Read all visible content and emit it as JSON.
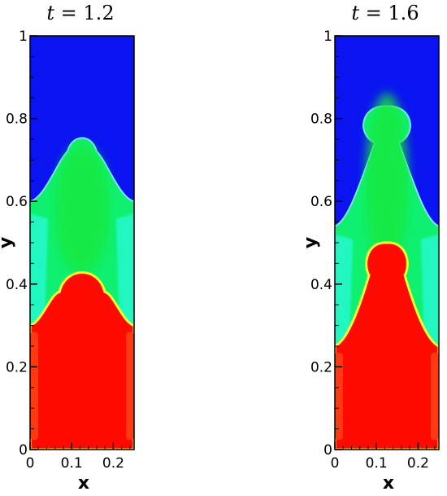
{
  "chart_data": [
    {
      "type": "heatmap",
      "title_parts": [
        "t",
        " = 1.2"
      ],
      "xlabel": "x",
      "ylabel": "y",
      "xlim": [
        0,
        0.25
      ],
      "ylim": [
        0,
        1
      ],
      "x_ticks": [
        "0",
        "0.1",
        "0.2"
      ],
      "y_ticks": [
        "0",
        "0.2",
        "0.4",
        "0.6",
        "0.8",
        "1"
      ],
      "fields": {
        "top_fluid_color": "#0a14f0",
        "middle_fluid_color": "#10f070",
        "middle_dark_color": "#12e83c",
        "lower_shelf_color": "#22f7c2",
        "bottom_fluid_color": "#ff0a00",
        "wall_layer_color": "#ff3a10",
        "interface_color": "#f2ff2a"
      },
      "interfaces": {
        "upper_bubble_top_y": 0.76,
        "upper_interface_wall_y": 0.6,
        "lower_bubble_top_y": 0.44,
        "lower_interface_wall_y": 0.3
      }
    },
    {
      "type": "heatmap",
      "title_parts": [
        "t",
        " = 1.6"
      ],
      "xlabel": "x",
      "ylabel": "y",
      "xlim": [
        0,
        0.25
      ],
      "ylim": [
        0,
        1
      ],
      "x_ticks": [
        "0",
        "0.1",
        "0.2"
      ],
      "y_ticks": [
        "0",
        "0.2",
        "0.4",
        "0.6",
        "0.8",
        "1"
      ],
      "fields": {
        "top_fluid_color": "#0a14f0",
        "middle_fluid_color": "#10f070",
        "middle_dark_color": "#12e83c",
        "lower_shelf_color": "#22f7c2",
        "bottom_fluid_color": "#ff0a00",
        "wall_layer_color": "#ff3a10",
        "interface_color": "#f2ff2a"
      },
      "interfaces": {
        "upper_bubble_top_y": 0.83,
        "upper_interface_wall_y": 0.54,
        "lower_bubble_top_y": 0.5,
        "lower_interface_wall_y": 0.25
      }
    }
  ]
}
